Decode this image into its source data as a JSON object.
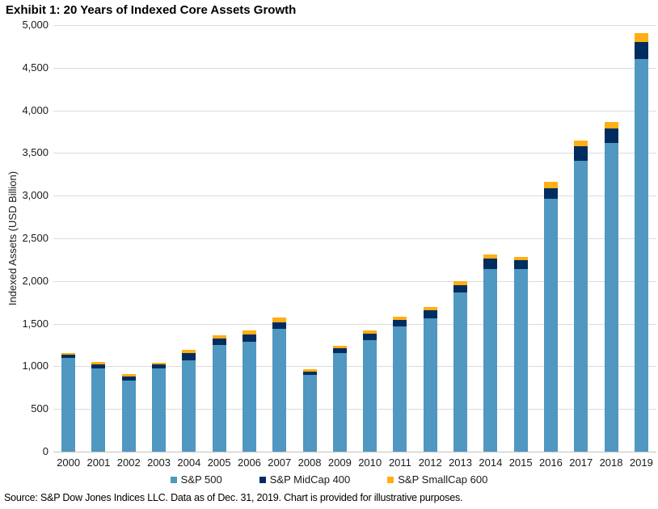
{
  "page": {
    "source_note": "Source: S&P Dow Jones Indices LLC. Data as of Dec. 31, 2019. Chart is provided for illustrative purposes."
  },
  "chart_data": {
    "type": "bar",
    "stacked": true,
    "title": "Exhibit 1: 20 Years of Indexed Core Assets Growth",
    "xlabel": "",
    "ylabel": "Indexed Assets (USD Billion)",
    "ylim": [
      0,
      5000
    ],
    "y_ticks": [
      0,
      500,
      1000,
      1500,
      2000,
      2500,
      3000,
      3500,
      4000,
      4500,
      5000
    ],
    "grid": "horizontal",
    "gridline_color": "#DCDCDC",
    "axis_color": "#C2C2C2",
    "legend_position": "bottom-center",
    "categories": [
      "2000",
      "2001",
      "2002",
      "2003",
      "2004",
      "2005",
      "2006",
      "2007",
      "2008",
      "2009",
      "2010",
      "2011",
      "2012",
      "2013",
      "2014",
      "2015",
      "2016",
      "2017",
      "2018",
      "2019"
    ],
    "series": [
      {
        "name": "S&P 500",
        "color": "#5097C1",
        "values": [
          1095,
          978,
          830,
          972,
          1070,
          1250,
          1285,
          1442,
          903,
          1155,
          1307,
          1465,
          1560,
          1866,
          2143,
          2143,
          2964,
          3412,
          3620,
          4605
        ]
      },
      {
        "name": "S&P MidCap 400",
        "color": "#002D5F",
        "values": [
          41,
          46,
          50,
          47,
          84,
          73,
          85,
          70,
          32,
          57,
          73,
          79,
          94,
          88,
          120,
          104,
          126,
          168,
          165,
          199
        ]
      },
      {
        "name": "S&P SmallCap 600",
        "color": "#FFAE14",
        "values": [
          24,
          30,
          25,
          26,
          38,
          38,
          47,
          57,
          31,
          31,
          38,
          40,
          41,
          47,
          45,
          38,
          70,
          69,
          78,
          105
        ]
      }
    ]
  }
}
